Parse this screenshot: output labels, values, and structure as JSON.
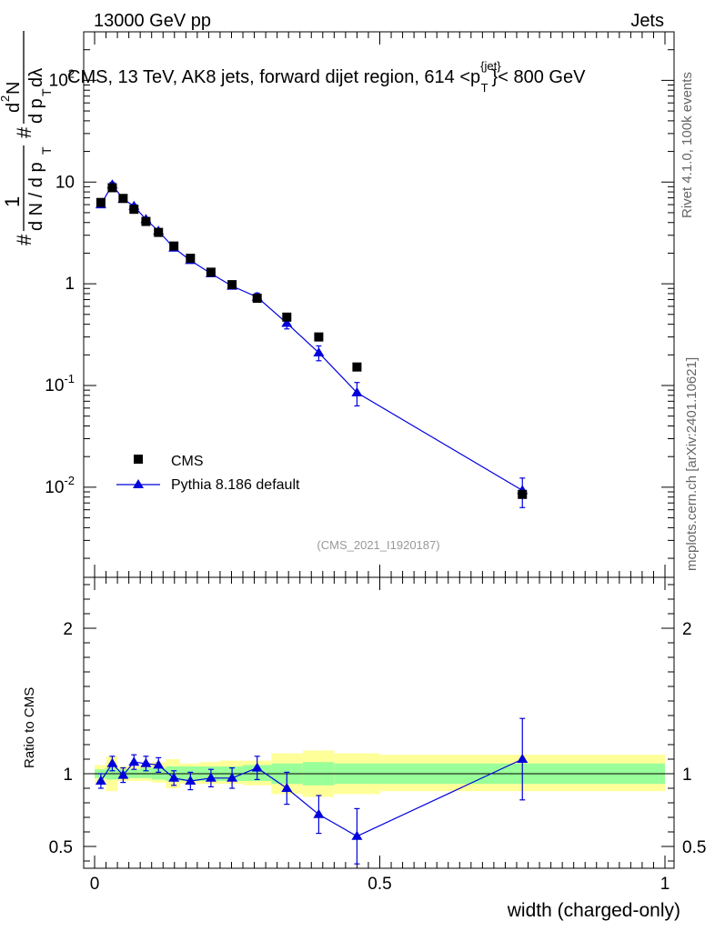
{
  "header": {
    "left": "13000 GeV pp",
    "right": "Jets",
    "plot_title": "CMS, 13 TeV, AK8 jets, forward dijet region, 614 <p",
    "plot_title_sup": "{jet}",
    "plot_title_sub": "T",
    "plot_title_end": "}< 800 GeV"
  },
  "side": {
    "rivet": "Rivet 4.1.0,  100k events",
    "mcplots": "mcplots.cern.ch [arXiv:2401.10621]"
  },
  "watermark": "(CMS_2021_I1920187)",
  "ylabel_main": {
    "hash": "#",
    "numer": "1",
    "denom": "d N / d p",
    "denom_sub": "T",
    "hash2": "#",
    "numer2": "d",
    "numer2_sup": "2",
    "numer2_tail": "N",
    "denom2": "d p",
    "denom2_sub": "T",
    "denom2_tail": " dλ"
  },
  "colors": {
    "mc": "#0000dd",
    "band_inner": "#99ff99",
    "band_outer": "#ffff99",
    "data": "#000000"
  },
  "chart_data": [
    {
      "type": "scatter",
      "title": "CMS, 13 TeV, AK8 jets, forward dijet region, 614 <p_T^{jet}< 800 GeV",
      "xlabel": "width (charged-only)",
      "ylabel": "1/(dN/dp_T) d^2N/(dp_T dλ)",
      "yscale": "log",
      "xlim": [
        -0.02,
        1.0
      ],
      "ylim": [
        0.0013,
        300
      ],
      "y_tick_labels": [
        "10^-2",
        "10^-1",
        "1",
        "10",
        "10^2"
      ],
      "legend_position": "bottom-left",
      "series": [
        {
          "name": "CMS",
          "marker": "square",
          "x": [
            0.011,
            0.031,
            0.05,
            0.069,
            0.09,
            0.112,
            0.139,
            0.168,
            0.204,
            0.241,
            0.285,
            0.337,
            0.393,
            0.46,
            0.75
          ],
          "y": [
            6.3,
            8.8,
            6.9,
            5.4,
            4.1,
            3.2,
            2.35,
            1.78,
            1.3,
            0.98,
            0.72,
            0.47,
            0.3,
            0.152,
            0.0085
          ]
        },
        {
          "name": "Pythia 8.186 default",
          "marker": "triangle",
          "x": [
            0.011,
            0.031,
            0.05,
            0.069,
            0.09,
            0.112,
            0.139,
            0.168,
            0.204,
            0.241,
            0.285,
            0.337,
            0.393,
            0.46,
            0.75
          ],
          "y": [
            6.0,
            9.4,
            6.8,
            5.8,
            4.3,
            3.3,
            2.25,
            1.7,
            1.26,
            0.95,
            0.74,
            0.41,
            0.21,
            0.085,
            0.0093
          ],
          "yerr": [
            0.4,
            0.5,
            0.3,
            0.25,
            0.2,
            0.15,
            0.12,
            0.1,
            0.08,
            0.06,
            0.07,
            0.05,
            0.035,
            0.022,
            0.003
          ]
        }
      ]
    },
    {
      "type": "scatter",
      "title": "",
      "xlabel": "width (charged-only)",
      "ylabel": "Ratio to CMS",
      "xlim": [
        -0.02,
        1.0
      ],
      "ylim": [
        0.35,
        2.35
      ],
      "x_tick_labels": [
        "0",
        "0.5",
        "1"
      ],
      "y_tick_labels": [
        "0.5",
        "1",
        "2"
      ],
      "bands": {
        "edges": [
          0,
          0.02,
          0.04,
          0.06,
          0.08,
          0.1,
          0.125,
          0.15,
          0.185,
          0.22,
          0.26,
          0.31,
          0.365,
          0.42,
          0.5,
          1.0
        ],
        "inner_lo": [
          0.97,
          0.96,
          0.97,
          0.97,
          0.97,
          0.96,
          0.95,
          0.95,
          0.95,
          0.95,
          0.95,
          0.93,
          0.92,
          0.93,
          0.93
        ],
        "inner_hi": [
          1.03,
          1.04,
          1.03,
          1.03,
          1.04,
          1.04,
          1.05,
          1.05,
          1.05,
          1.05,
          1.06,
          1.07,
          1.08,
          1.07,
          1.07
        ],
        "outer_lo": [
          0.94,
          0.88,
          0.95,
          0.95,
          0.95,
          0.94,
          0.9,
          0.93,
          0.93,
          0.93,
          0.92,
          0.86,
          0.84,
          0.86,
          0.88
        ],
        "outer_hi": [
          1.06,
          1.12,
          1.05,
          1.05,
          1.06,
          1.08,
          1.1,
          1.07,
          1.08,
          1.09,
          1.09,
          1.14,
          1.16,
          1.14,
          1.13
        ]
      },
      "series": [
        {
          "name": "Pythia 8.186 default",
          "x": [
            0.011,
            0.031,
            0.05,
            0.069,
            0.09,
            0.112,
            0.139,
            0.168,
            0.204,
            0.241,
            0.285,
            0.337,
            0.393,
            0.46,
            0.75
          ],
          "y": [
            0.95,
            1.07,
            0.99,
            1.08,
            1.07,
            1.06,
            0.97,
            0.95,
            0.97,
            0.97,
            1.04,
            0.9,
            0.72,
            0.57,
            1.1
          ],
          "yerr": [
            0.05,
            0.05,
            0.05,
            0.05,
            0.05,
            0.05,
            0.05,
            0.06,
            0.06,
            0.07,
            0.08,
            0.11,
            0.13,
            0.19,
            0.28
          ]
        }
      ]
    }
  ]
}
